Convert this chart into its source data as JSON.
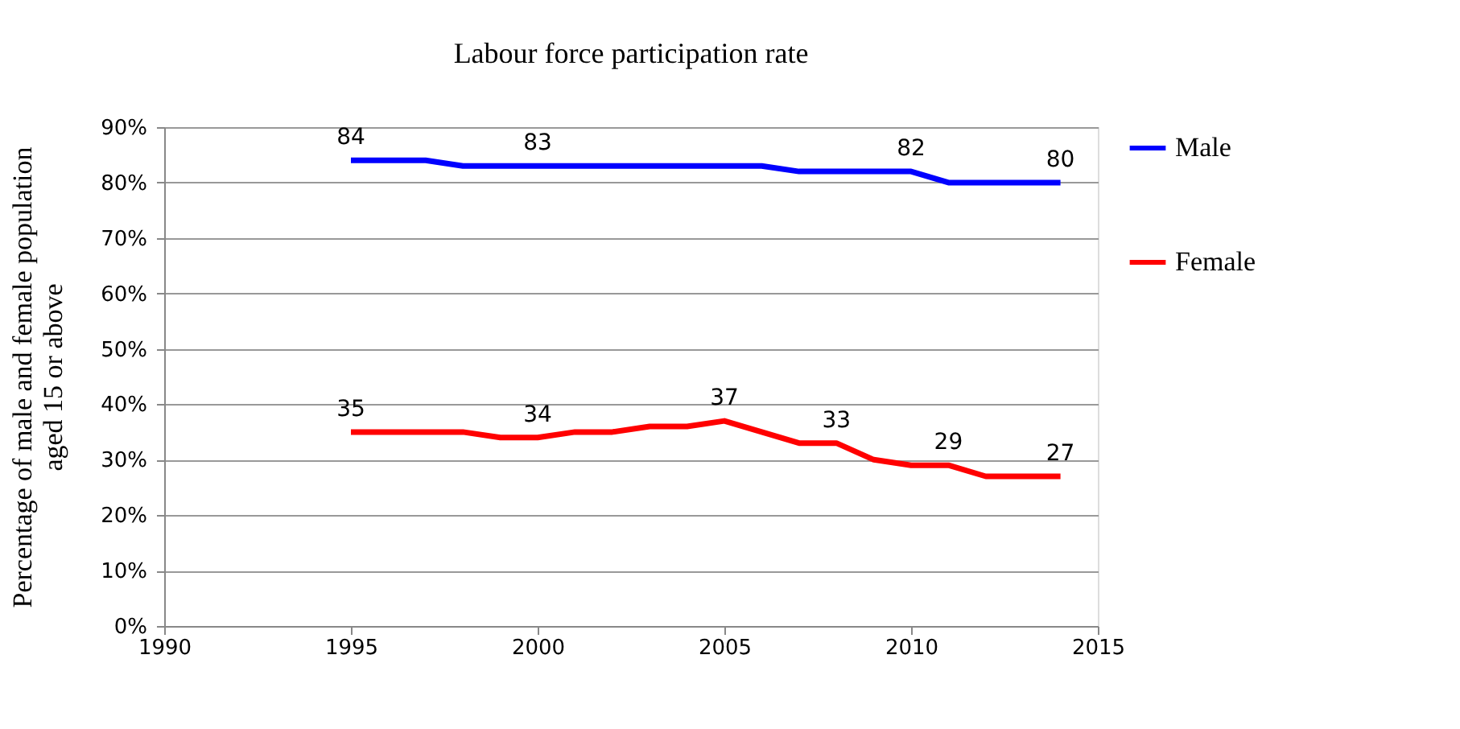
{
  "chart_data": {
    "type": "line",
    "title": "Labour  force participation rate",
    "ylabel": "Percentage of male and female population\naged 15 or above",
    "x": [
      1995,
      1996,
      1997,
      1998,
      1999,
      2000,
      2001,
      2002,
      2003,
      2004,
      2005,
      2006,
      2007,
      2008,
      2009,
      2010,
      2011,
      2012,
      2013,
      2014
    ],
    "series": [
      {
        "name": "Male",
        "color": "#0000ff",
        "values": [
          84,
          84,
          84,
          83,
          83,
          83,
          83,
          83,
          83,
          83,
          83,
          83,
          82,
          82,
          82,
          82,
          80,
          80,
          80,
          80
        ],
        "value_labels": [
          "84",
          null,
          null,
          null,
          null,
          "83",
          null,
          null,
          null,
          null,
          null,
          null,
          null,
          null,
          null,
          "82",
          null,
          null,
          null,
          "80"
        ]
      },
      {
        "name": "Female",
        "color": "#ff0000",
        "values": [
          35,
          35,
          35,
          35,
          34,
          34,
          35,
          35,
          36,
          36,
          37,
          35,
          33,
          33,
          30,
          29,
          29,
          27,
          27,
          27
        ],
        "value_labels": [
          "35",
          null,
          null,
          null,
          null,
          "34",
          null,
          null,
          null,
          null,
          "37",
          null,
          null,
          "33",
          null,
          null,
          "29",
          null,
          null,
          "27"
        ]
      }
    ],
    "xlim": [
      1990,
      2015
    ],
    "xticks": [
      1990,
      1995,
      2000,
      2005,
      2010,
      2015
    ],
    "ylim": [
      0,
      90
    ],
    "yticks": [
      {
        "value": 0,
        "label": "0%"
      },
      {
        "value": 10,
        "label": "10%"
      },
      {
        "value": 20,
        "label": "20%"
      },
      {
        "value": 30,
        "label": "30%"
      },
      {
        "value": 40,
        "label": "40%"
      },
      {
        "value": 50,
        "label": "50%"
      },
      {
        "value": 60,
        "label": "60%"
      },
      {
        "value": 70,
        "label": "70%"
      },
      {
        "value": 80,
        "label": "80%"
      },
      {
        "value": 90,
        "label": "90%"
      }
    ],
    "grid": "y",
    "legend": "right",
    "marker": "none",
    "line_style": "solid"
  }
}
